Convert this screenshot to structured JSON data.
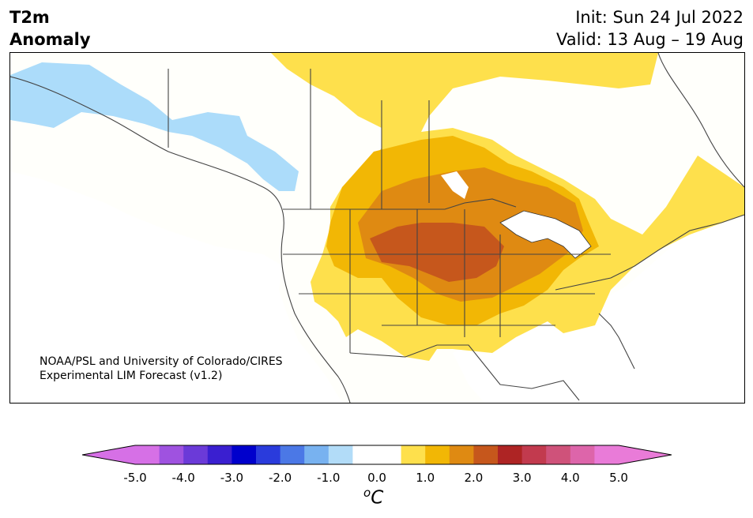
{
  "header": {
    "title_line1": "T2m",
    "title_line2": "Anomaly",
    "init": "Init: Sun 24 Jul 2022",
    "valid": "Valid: 13 Aug – 19 Aug"
  },
  "credit": {
    "line1": "NOAA/PSL and University of Colorado/CIRES",
    "line2": "Experimental LIM Forecast (v1.2)"
  },
  "colorbar": {
    "unit_symbol": "o",
    "unit_letter": "C",
    "ticks": [
      "-5.0",
      "-4.0",
      "-3.0",
      "-2.0",
      "-1.0",
      "0.0",
      "1.0",
      "2.0",
      "3.0",
      "4.0",
      "5.0"
    ],
    "colors": [
      "#d670e6",
      "#9f52e0",
      "#6b3ad8",
      "#3a1fd0",
      "#0000cc",
      "#2a3bdc",
      "#4b78e6",
      "#78b2f0",
      "#b2dcf8",
      "#ffffff",
      "#ffffff",
      "#fee04c",
      "#f2b705",
      "#df8a12",
      "#c6571c",
      "#ae2424",
      "#c23a4e",
      "#cf527a",
      "#dd65aa",
      "#e97bd8"
    ],
    "under_color": "#d670e6",
    "over_color": "#e97bd8"
  }
}
